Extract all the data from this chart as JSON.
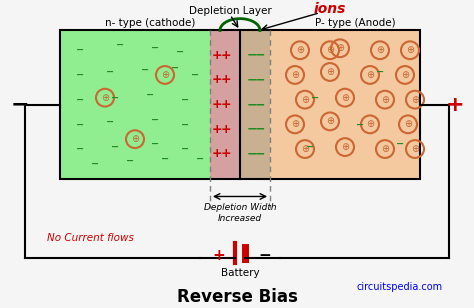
{
  "bg_color": "#f5f5f5",
  "n_type_color": "#90ee90",
  "p_type_color": "#f4c9a0",
  "depletion_left_color": "#d4a0a0",
  "depletion_right_color": "#c8b090",
  "title": "Reverse Bias",
  "title_fontsize": 14,
  "n_label": "n- type (cathode)",
  "p_label": "P- type (Anode)",
  "depletion_label": "Depletion Layer",
  "ions_label": "ions",
  "depletion_width_label": "Depletion Width\nIncreased",
  "no_current_label": "No Current flows",
  "battery_label": "Battery",
  "website": "circuitspedia.com",
  "minus_color": "#228B22",
  "plus_color": "#cc3300",
  "circle_color": "#cc6633",
  "red_color": "#cc0000",
  "dark_red": "#8B0000"
}
